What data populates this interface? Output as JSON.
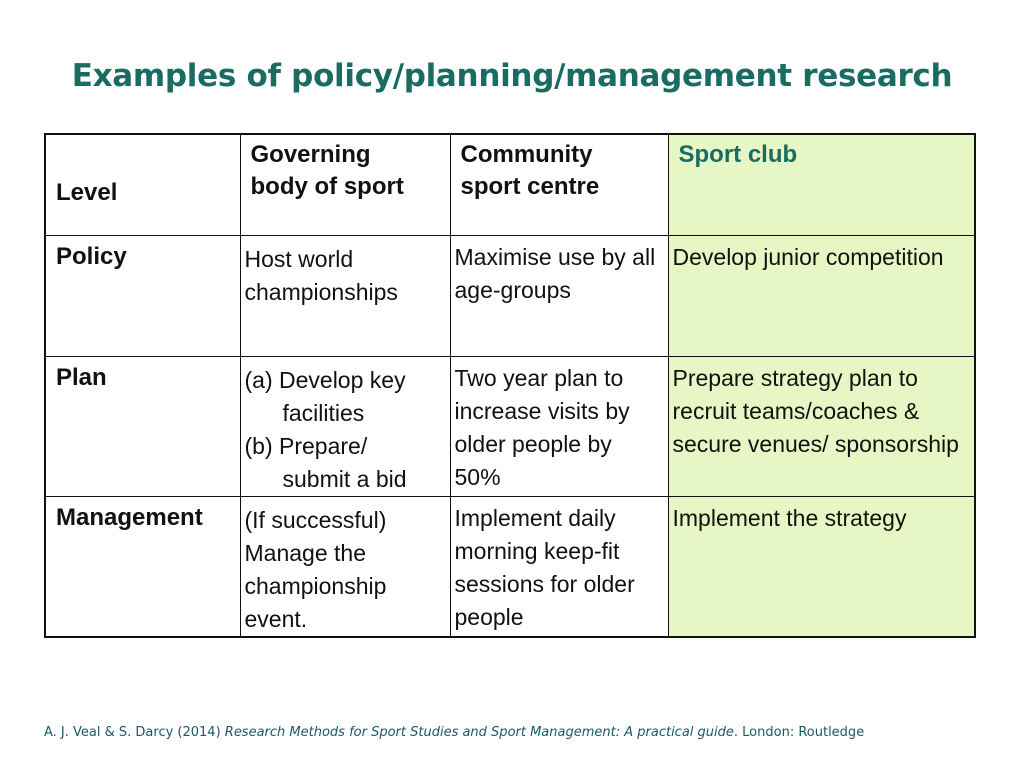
{
  "slide": {
    "title": "Examples of  policy/planning/management research"
  },
  "table": {
    "headers": {
      "level": "Level",
      "col1_line1": "Governing",
      "col1_line2": "body of sport",
      "col2_line1": "Community",
      "col2_line2": "sport centre",
      "col3": "Sport club"
    },
    "rows": {
      "policy": {
        "label": "Policy",
        "governing": "Host world championships",
        "community": "Maximise use by all age-groups",
        "club": "Develop junior competition"
      },
      "plan": {
        "label": "Plan",
        "governing_a_prefix": "(a) Develop key",
        "governing_a_cont": "facilities",
        "governing_b_prefix": "(b) Prepare/",
        "governing_b_cont": "submit a bid",
        "community": "Two year plan to increase visits by older people by 50%",
        "club": "Prepare strategy plan to recruit teams/coaches & secure venues/ sponsorship"
      },
      "management": {
        "label": "Management",
        "governing": "(If successful) Manage the championship event.",
        "community": "Implement daily morning keep-fit sessions for older people",
        "club": "Implement the strategy"
      }
    }
  },
  "citation": {
    "authors": "A. J. Veal & S. Darcy (2014) ",
    "book_title": "Research Methods for Sport Studies and Sport Management: A practical guide",
    "publisher": ". London: Routledge"
  },
  "colors": {
    "title": "#1a6b62",
    "sport_club_fill": "#e6f6c4",
    "citation": "#1a5a62"
  }
}
